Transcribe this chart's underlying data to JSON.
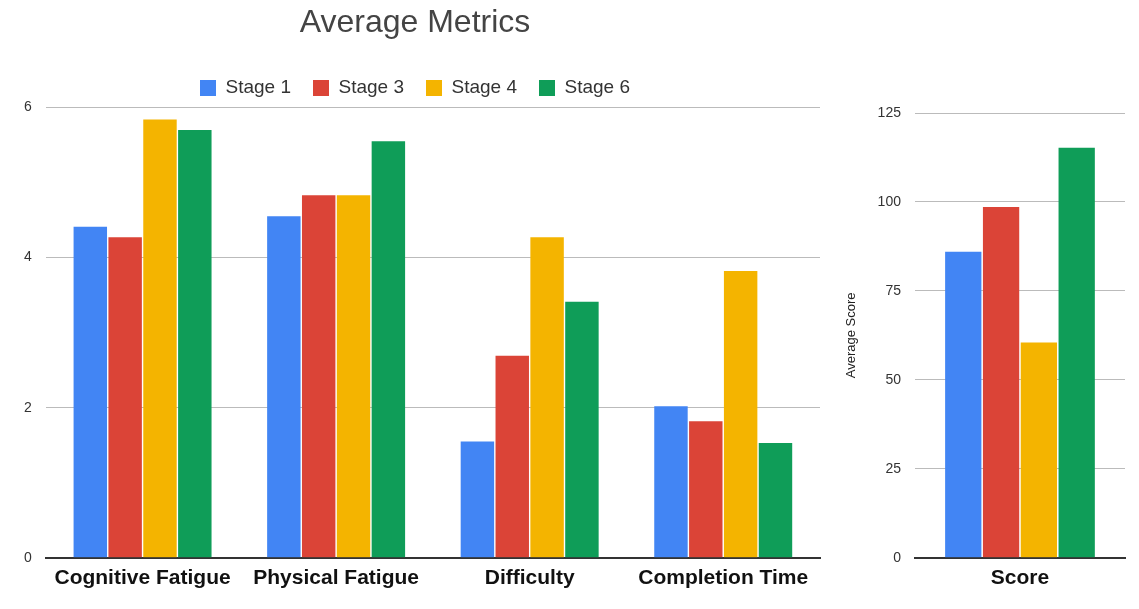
{
  "chart_data": [
    {
      "type": "bar",
      "title": "Average Metrics",
      "categories": [
        "Cognitive Fatigue",
        "Physical Fatigue",
        "Difficulty",
        "Completion Time"
      ],
      "series": [
        {
          "name": "Stage 1",
          "color": "#4285f4",
          "values": [
            4.41,
            4.55,
            1.55,
            2.02
          ]
        },
        {
          "name": "Stage 3",
          "color": "#db4437",
          "values": [
            4.27,
            4.83,
            2.69,
            1.82
          ]
        },
        {
          "name": "Stage 4",
          "color": "#f4b400",
          "values": [
            5.84,
            4.83,
            4.27,
            3.82
          ]
        },
        {
          "name": "Stage 6",
          "color": "#0f9d58",
          "values": [
            5.7,
            5.55,
            3.41,
            1.53
          ]
        }
      ],
      "ylim": [
        0,
        6
      ],
      "yticks": [
        0,
        2,
        4,
        6
      ],
      "grid": "y",
      "legend": "top"
    },
    {
      "type": "bar",
      "ylabel": "Average Score",
      "categories": [
        "Score"
      ],
      "series": [
        {
          "color": "#4285f4",
          "values": [
            86.0
          ]
        },
        {
          "color": "#db4437",
          "values": [
            98.6
          ]
        },
        {
          "color": "#f4b400",
          "values": [
            60.5
          ]
        },
        {
          "color": "#0f9d58",
          "values": [
            115.2
          ]
        }
      ],
      "ylim": [
        0,
        125
      ],
      "yticks": [
        0,
        25,
        50,
        75,
        100,
        125
      ],
      "grid": "y"
    }
  ]
}
